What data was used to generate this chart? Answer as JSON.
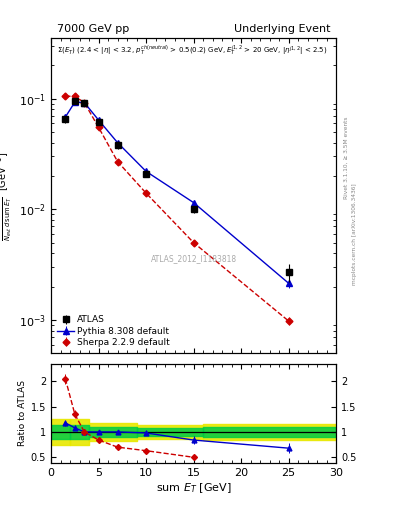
{
  "title_left": "7000 GeV pp",
  "title_right": "Underlying Event",
  "annotation": "ATLAS_2012_I1183818",
  "right_label1": "Rivet 3.1.10, ≥ 3.5M events",
  "right_label2": "mcplots.cern.ch [arXiv:1306.3436]",
  "atlas_x": [
    1.5,
    2.5,
    3.5,
    5.0,
    7.0,
    10.0,
    15.0,
    25.0
  ],
  "atlas_y": [
    0.065,
    0.095,
    0.092,
    0.062,
    0.038,
    0.021,
    0.01,
    0.0027
  ],
  "atlas_yerr": [
    0.005,
    0.006,
    0.006,
    0.004,
    0.003,
    0.0015,
    0.0008,
    0.0005
  ],
  "pythia_x": [
    1.5,
    2.5,
    3.5,
    5.0,
    7.0,
    10.0,
    15.0,
    25.0
  ],
  "pythia_y": [
    0.068,
    0.093,
    0.092,
    0.064,
    0.04,
    0.022,
    0.0115,
    0.00215
  ],
  "pythia_yerr": [
    0.002,
    0.003,
    0.003,
    0.002,
    0.001,
    0.0008,
    0.0005,
    0.0002
  ],
  "sherpa_x": [
    1.5,
    2.5,
    3.5,
    5.0,
    7.0,
    10.0,
    15.0,
    25.0
  ],
  "sherpa_y": [
    0.105,
    0.105,
    0.092,
    0.055,
    0.027,
    0.014,
    0.005,
    0.00098
  ],
  "sherpa_yerr": [
    0.004,
    0.004,
    0.003,
    0.002,
    0.001,
    0.0008,
    0.0003,
    8e-05
  ],
  "ratio_pythia_x": [
    1.5,
    2.5,
    3.5,
    5.0,
    7.0,
    10.0,
    15.0,
    25.0
  ],
  "ratio_pythia_y": [
    1.18,
    1.08,
    1.0,
    1.0,
    1.0,
    0.98,
    0.84,
    0.68
  ],
  "ratio_pythia_yerr": [
    0.06,
    0.05,
    0.05,
    0.04,
    0.04,
    0.05,
    0.07,
    0.1
  ],
  "ratio_sherpa_x": [
    1.5,
    2.5,
    3.5,
    5.0,
    7.0,
    10.0,
    15.0
  ],
  "ratio_sherpa_y": [
    2.05,
    1.35,
    1.0,
    0.84,
    0.7,
    0.63,
    0.5
  ],
  "ratio_sherpa_yerr": [
    0.1,
    0.08,
    0.05,
    0.04,
    0.04,
    0.04,
    0.04
  ],
  "band_edges": [
    0.0,
    2.0,
    4.0,
    9.0,
    16.0,
    30.0
  ],
  "band_green_lo": [
    0.87,
    0.87,
    0.9,
    0.92,
    0.9,
    0.9
  ],
  "band_green_hi": [
    1.13,
    1.13,
    1.1,
    1.08,
    1.1,
    1.1
  ],
  "band_yellow_lo": [
    0.75,
    0.75,
    0.82,
    0.86,
    0.84,
    0.84
  ],
  "band_yellow_hi": [
    1.25,
    1.25,
    1.18,
    1.14,
    1.16,
    1.16
  ],
  "atlas_color": "#000000",
  "pythia_color": "#0000cc",
  "sherpa_color": "#cc0000",
  "green_band_color": "#00cc00",
  "yellow_band_color": "#cccc00",
  "right_text_color": "#999999",
  "ylim_main": [
    0.0005,
    0.35
  ],
  "ylim_ratio": [
    0.38,
    2.35
  ],
  "xlim": [
    0,
    30
  ]
}
